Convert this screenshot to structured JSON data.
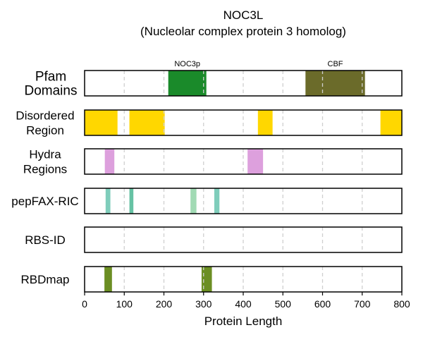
{
  "chart_data": {
    "type": "track",
    "title": "NOC3L",
    "subtitle": "(Nucleolar complex protein 3 homolog)",
    "xlabel": "Protein Length",
    "xlim": [
      0,
      800
    ],
    "xticks": [
      0,
      100,
      200,
      300,
      400,
      500,
      600,
      700,
      800
    ],
    "grid": "dashed vertical lines at each 100",
    "tracks": [
      {
        "label": "Pfam\nDomains",
        "features": [
          {
            "name": "NOC3p",
            "start": 211,
            "end": 307,
            "color": "#1a8a2a"
          },
          {
            "name": "CBF",
            "start": 557,
            "end": 707,
            "color": "#6b6b2a"
          }
        ]
      },
      {
        "label": "Disordered\nRegion",
        "features": [
          {
            "start": 0,
            "end": 83,
            "color": "#ffd700"
          },
          {
            "start": 113,
            "end": 202,
            "color": "#ffd700"
          },
          {
            "start": 437,
            "end": 474,
            "color": "#ffd700"
          },
          {
            "start": 746,
            "end": 800,
            "color": "#ffd700"
          }
        ]
      },
      {
        "label": "Hydra\nRegions",
        "features": [
          {
            "start": 51,
            "end": 75,
            "color": "#dda0dd"
          },
          {
            "start": 411,
            "end": 450,
            "color": "#dda0dd"
          }
        ]
      },
      {
        "label": "pepFAX-RIC",
        "features": [
          {
            "start": 53,
            "end": 65,
            "color": "#7fcdbb"
          },
          {
            "start": 113,
            "end": 123,
            "color": "#66c2a4"
          },
          {
            "start": 267,
            "end": 282,
            "color": "#a1dab4"
          },
          {
            "start": 327,
            "end": 340,
            "color": "#7fcdbb"
          }
        ]
      },
      {
        "label": "RBS-ID",
        "features": []
      },
      {
        "label": "RBDmap",
        "features": [
          {
            "start": 50,
            "end": 69,
            "color": "#6b8e23"
          },
          {
            "start": 295,
            "end": 321,
            "color": "#6b8e23"
          }
        ]
      }
    ]
  }
}
